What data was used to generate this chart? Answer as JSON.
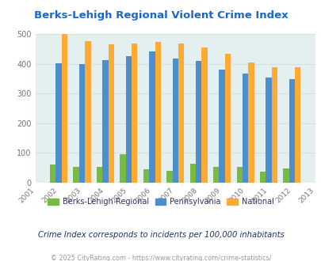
{
  "title": "Berks-Lehigh Regional Violent Crime Index",
  "years": [
    2001,
    2002,
    2003,
    2004,
    2005,
    2006,
    2007,
    2008,
    2009,
    2010,
    2011,
    2012,
    2013
  ],
  "data_years": [
    2002,
    2003,
    2004,
    2005,
    2006,
    2007,
    2008,
    2009,
    2010,
    2011,
    2012
  ],
  "berks_lehigh": [
    62,
    52,
    52,
    95,
    45,
    40,
    63,
    52,
    52,
    38,
    48
  ],
  "pennsylvania": [
    401,
    400,
    412,
    425,
    442,
    418,
    409,
    381,
    366,
    353,
    349
  ],
  "national": [
    500,
    477,
    465,
    469,
    474,
    467,
    455,
    432,
    405,
    387,
    387
  ],
  "color_berks": "#77bb44",
  "color_pa": "#4d8fcc",
  "color_national": "#ffaa33",
  "bg_plot": "#e4f0f0",
  "bg_fig": "#ffffff",
  "ylim": [
    0,
    500
  ],
  "yticks": [
    0,
    100,
    200,
    300,
    400,
    500
  ],
  "subtitle": "Crime Index corresponds to incidents per 100,000 inhabitants",
  "footer": "© 2025 CityRating.com - https://www.cityrating.com/crime-statistics/",
  "legend_labels": [
    "Berks-Lehigh Regional",
    "Pennsylvania",
    "National"
  ],
  "title_color": "#1a66cc",
  "subtitle_color": "#1a3366",
  "footer_color": "#999999",
  "tick_color": "#777777",
  "grid_color": "#ccdddd",
  "legend_text_color": "#333366"
}
